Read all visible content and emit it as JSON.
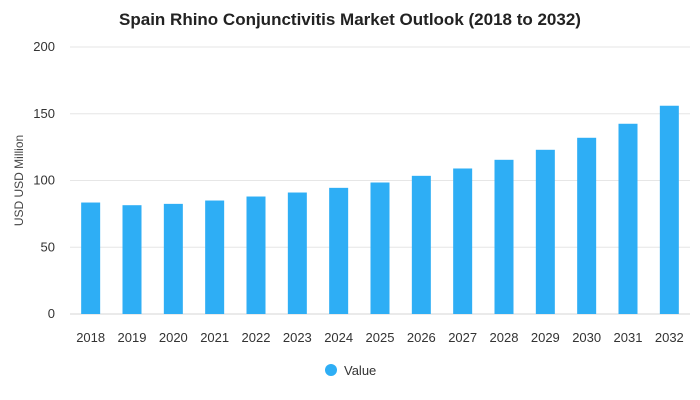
{
  "chart_data": {
    "type": "bar",
    "title": "Spain Rhino Conjunctivitis Market Outlook (2018 to 2032)",
    "xlabel": "",
    "ylabel": "USD USD Million",
    "categories": [
      "2018",
      "2019",
      "2020",
      "2021",
      "2022",
      "2023",
      "2024",
      "2025",
      "2026",
      "2027",
      "2028",
      "2029",
      "2030",
      "2031",
      "2032"
    ],
    "series": [
      {
        "name": "Value",
        "values": [
          83.5,
          81.5,
          82.5,
          85,
          88,
          91,
          94.5,
          98.5,
          103.5,
          109,
          115.5,
          123,
          132,
          142.5,
          156
        ],
        "color": "#2eaef5"
      }
    ],
    "ylim": [
      0,
      200
    ],
    "yticks": [
      0,
      50,
      100,
      150,
      200
    ],
    "grid": true,
    "legend_position": "bottom"
  }
}
